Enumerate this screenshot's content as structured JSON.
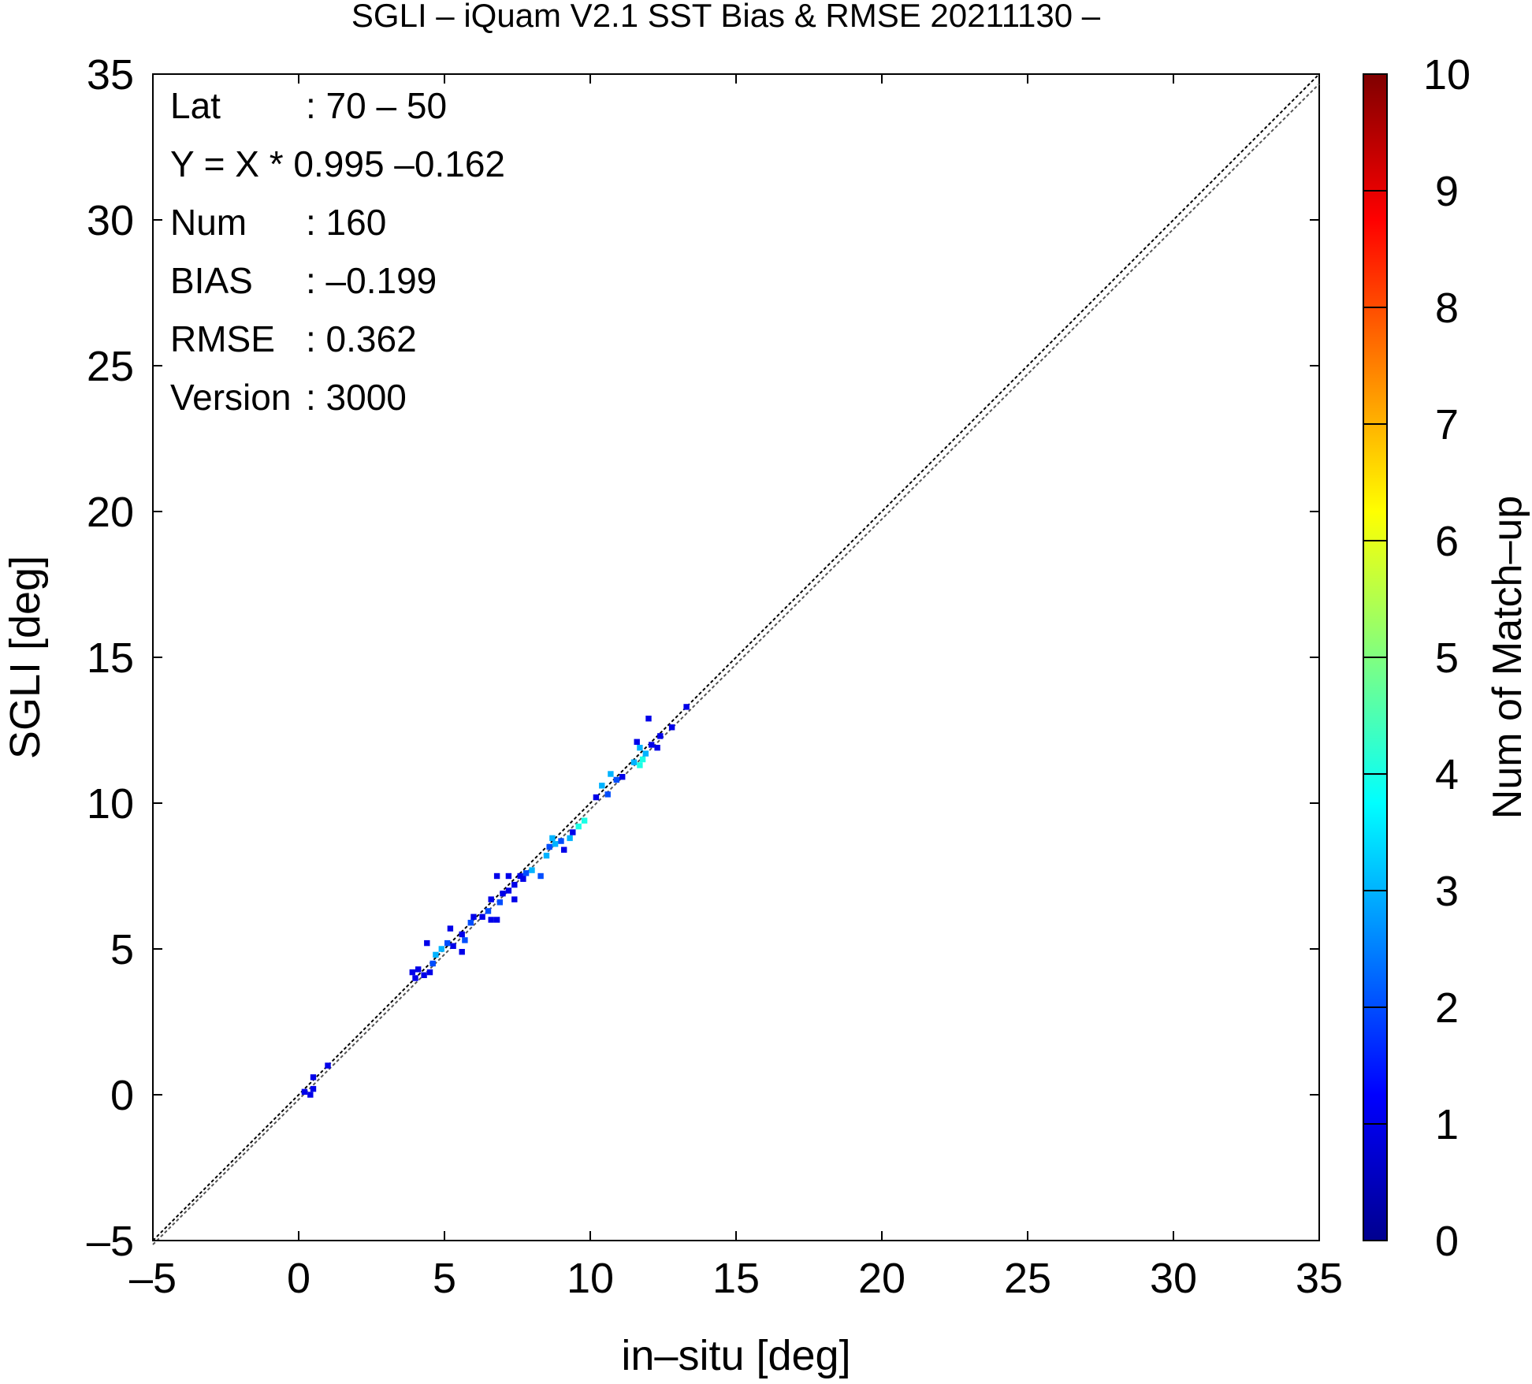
{
  "chart_data": {
    "type": "heatmap",
    "title": "SGLI – iQuam V2.1 SST Bias & RMSE 20211130 –",
    "xlabel": "in–situ [deg]",
    "ylabel": "SGLI [deg]",
    "xlim": [
      -5,
      35
    ],
    "ylim": [
      -5,
      35
    ],
    "xticks": [
      -5,
      0,
      5,
      10,
      15,
      20,
      25,
      30,
      35
    ],
    "yticks": [
      -5,
      0,
      5,
      10,
      15,
      20,
      25,
      30,
      35
    ],
    "xtick_labels": [
      "–5",
      "0",
      "5",
      "10",
      "15",
      "20",
      "25",
      "30",
      "35"
    ],
    "ytick_labels": [
      "–5",
      "0",
      "5",
      "10",
      "15",
      "20",
      "25",
      "30",
      "35"
    ],
    "grid": false,
    "reference_line": "y = x",
    "regression_line": {
      "slope": 0.995,
      "intercept": -0.162
    },
    "colorbar": {
      "label": "Num of Match–up",
      "range": [
        0,
        10
      ],
      "ticks": [
        0,
        1,
        2,
        3,
        4,
        5,
        6,
        7,
        8,
        9,
        10
      ],
      "tick_labels": [
        "0",
        "1",
        "2",
        "3",
        "4",
        "5",
        "6",
        "7",
        "8",
        "9",
        "10"
      ],
      "colormap": [
        "#00008f",
        "#0000ff",
        "#0080ff",
        "#00ffff",
        "#80ff80",
        "#ffff00",
        "#ff8000",
        "#ff0000",
        "#800000"
      ]
    },
    "stats": [
      {
        "label": "Lat",
        "value": ": 70 – 50"
      },
      {
        "label": "Y = X * 0.995 –0.162",
        "value": ""
      },
      {
        "label": "Num",
        "value": ": 160"
      },
      {
        "label": "BIAS",
        "value": ": –0.199"
      },
      {
        "label": "RMSE",
        "value": ": 0.362"
      },
      {
        "label": "Version",
        "value": ": 3000"
      }
    ],
    "cells": [
      [
        0.2,
        0.1,
        1
      ],
      [
        0.4,
        0.0,
        1
      ],
      [
        0.5,
        0.2,
        1
      ],
      [
        0.5,
        0.6,
        1
      ],
      [
        1.0,
        1.0,
        1
      ],
      [
        3.9,
        4.2,
        1
      ],
      [
        4.0,
        4.0,
        1
      ],
      [
        4.1,
        4.3,
        1
      ],
      [
        4.3,
        4.1,
        1
      ],
      [
        4.5,
        4.2,
        1
      ],
      [
        4.6,
        4.5,
        2
      ],
      [
        4.7,
        4.8,
        3
      ],
      [
        4.4,
        5.2,
        1
      ],
      [
        4.9,
        5.0,
        3
      ],
      [
        5.1,
        5.2,
        2
      ],
      [
        5.3,
        5.1,
        1
      ],
      [
        5.2,
        5.7,
        1
      ],
      [
        5.6,
        4.9,
        1
      ],
      [
        5.7,
        5.3,
        2
      ],
      [
        5.6,
        5.5,
        1
      ],
      [
        5.9,
        5.9,
        2
      ],
      [
        6.0,
        6.1,
        1
      ],
      [
        6.3,
        6.1,
        1
      ],
      [
        6.5,
        6.3,
        2
      ],
      [
        6.6,
        6.0,
        1
      ],
      [
        6.8,
        6.0,
        1
      ],
      [
        6.6,
        6.7,
        1
      ],
      [
        6.9,
        6.6,
        2
      ],
      [
        7.0,
        6.9,
        1
      ],
      [
        7.2,
        7.0,
        1
      ],
      [
        7.2,
        7.5,
        1
      ],
      [
        7.4,
        7.2,
        1
      ],
      [
        6.8,
        7.5,
        1
      ],
      [
        7.6,
        7.5,
        1
      ],
      [
        7.4,
        6.7,
        1
      ],
      [
        7.7,
        7.4,
        1
      ],
      [
        7.8,
        7.6,
        2
      ],
      [
        8.0,
        7.7,
        3
      ],
      [
        8.3,
        7.5,
        2
      ],
      [
        8.5,
        8.2,
        3
      ],
      [
        8.6,
        8.5,
        2
      ],
      [
        8.7,
        8.8,
        3
      ],
      [
        8.8,
        8.6,
        3
      ],
      [
        9.0,
        8.7,
        2
      ],
      [
        9.1,
        8.4,
        1
      ],
      [
        9.3,
        8.8,
        3
      ],
      [
        9.4,
        9.0,
        1
      ],
      [
        9.6,
        9.2,
        4
      ],
      [
        9.8,
        9.4,
        4
      ],
      [
        10.2,
        10.2,
        1
      ],
      [
        10.4,
        10.6,
        3
      ],
      [
        10.6,
        10.3,
        2
      ],
      [
        10.7,
        11.0,
        3
      ],
      [
        10.9,
        10.8,
        2
      ],
      [
        11.1,
        10.9,
        1
      ],
      [
        11.5,
        11.4,
        3
      ],
      [
        11.7,
        11.3,
        4
      ],
      [
        11.8,
        11.5,
        4
      ],
      [
        11.7,
        11.9,
        3
      ],
      [
        11.9,
        11.7,
        3
      ],
      [
        11.6,
        12.1,
        1
      ],
      [
        12.1,
        12.0,
        1
      ],
      [
        12.3,
        11.9,
        1
      ],
      [
        12.4,
        12.3,
        1
      ],
      [
        12.0,
        12.9,
        1
      ],
      [
        12.8,
        12.6,
        1
      ],
      [
        13.3,
        13.3,
        1
      ]
    ]
  }
}
